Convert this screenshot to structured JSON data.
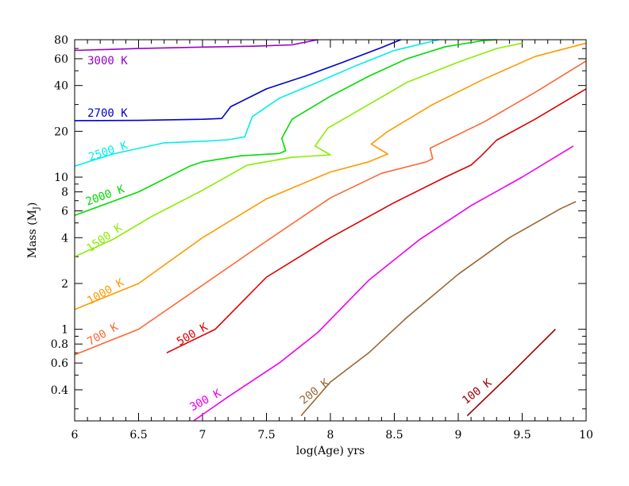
{
  "chart_data": {
    "type": "line",
    "title": "",
    "xlabel": "log(Age) yrs",
    "ylabel": "Mass (M",
    "ylabel_sub": "J",
    "ylabel_close": ")",
    "xlim": [
      6,
      10
    ],
    "ylim": [
      0.25,
      80
    ],
    "yscale": "log",
    "grid": false,
    "legend": "none",
    "x_ticks": [
      {
        "value": 6,
        "label": "6"
      },
      {
        "value": 6.5,
        "label": "6.5"
      },
      {
        "value": 7,
        "label": "7"
      },
      {
        "value": 7.5,
        "label": "7.5"
      },
      {
        "value": 8,
        "label": "8"
      },
      {
        "value": 8.5,
        "label": "8.5"
      },
      {
        "value": 9,
        "label": "9"
      },
      {
        "value": 9.5,
        "label": "9.5"
      },
      {
        "value": 10,
        "label": "10"
      }
    ],
    "y_ticks": [
      {
        "value": 0.4,
        "label": "0.4"
      },
      {
        "value": 0.6,
        "label": "0.6"
      },
      {
        "value": 0.8,
        "label": "0.8"
      },
      {
        "value": 1,
        "label": "1"
      },
      {
        "value": 2,
        "label": "2"
      },
      {
        "value": 4,
        "label": "4"
      },
      {
        "value": 6,
        "label": "6"
      },
      {
        "value": 8,
        "label": "8"
      },
      {
        "value": 10,
        "label": "10"
      },
      {
        "value": 20,
        "label": "20"
      },
      {
        "value": 40,
        "label": "40"
      },
      {
        "value": 60,
        "label": "60"
      },
      {
        "value": 80,
        "label": "80"
      }
    ],
    "series": [
      {
        "name": "3000 K",
        "color": "#9900cc",
        "label_x": 6.1,
        "label_y": 55,
        "label_angle": 0,
        "x": [
          6.0,
          6.5,
          7.0,
          7.4,
          7.7,
          7.9
        ],
        "y": [
          68,
          70,
          71.5,
          72.5,
          74,
          80
        ]
      },
      {
        "name": "2700 K",
        "color": "#0000cc",
        "label_x": 6.1,
        "label_y": 25,
        "label_angle": 0,
        "x": [
          6.0,
          6.5,
          7.0,
          7.15,
          7.22,
          7.5,
          7.8,
          8.1,
          8.4,
          8.55
        ],
        "y": [
          23.5,
          23.6,
          24.0,
          24.3,
          29,
          38,
          46,
          57,
          71,
          80
        ]
      },
      {
        "name": "2500 K",
        "color": "#00eeee",
        "label_x": 6.12,
        "label_y": 12.8,
        "label_angle": -18,
        "x": [
          6.0,
          6.3,
          6.7,
          7.0,
          7.2,
          7.33,
          7.39,
          7.6,
          7.9,
          8.2,
          8.5,
          8.85
        ],
        "y": [
          11.8,
          14.2,
          16.8,
          17.2,
          17.6,
          18.4,
          25,
          33,
          42,
          54,
          68,
          80
        ]
      },
      {
        "name": "2000 K",
        "color": "#00dd00",
        "label_x": 6.1,
        "label_y": 6.5,
        "label_angle": -20,
        "x": [
          6.0,
          6.5,
          6.9,
          7.0,
          7.3,
          7.6,
          7.65,
          7.62,
          7.7,
          8.0,
          8.3,
          8.6,
          8.9,
          9.2,
          9.3
        ],
        "y": [
          5.6,
          8.0,
          11.8,
          12.6,
          13.8,
          14.3,
          14.9,
          18.0,
          24,
          34,
          46,
          60,
          72,
          79,
          80
        ]
      },
      {
        "name": "1500 K",
        "color": "#88ee00",
        "label_x": 6.12,
        "label_y": 3.2,
        "label_angle": -35,
        "x": [
          6.0,
          6.3,
          6.6,
          7.0,
          7.35,
          7.7,
          8.0,
          7.88,
          7.98,
          8.3,
          8.6,
          9.0,
          9.3,
          9.5
        ],
        "y": [
          3.0,
          3.9,
          5.5,
          8.2,
          12.0,
          13.5,
          14.0,
          16.0,
          21,
          30,
          42,
          57,
          70,
          76
        ]
      },
      {
        "name": "1000 K",
        "color": "#ff9900",
        "label_x": 6.12,
        "label_y": 1.45,
        "label_angle": -30,
        "x": [
          6.0,
          6.5,
          7.0,
          7.5,
          8.0,
          8.3,
          8.45,
          8.32,
          8.45,
          8.8,
          9.2,
          9.6,
          10.0
        ],
        "y": [
          1.35,
          2.0,
          4.0,
          7.2,
          10.8,
          12.6,
          14.2,
          16.5,
          20,
          30,
          44,
          62,
          76
        ]
      },
      {
        "name": "700 K",
        "color": "#ff6633",
        "label_x": 6.12,
        "label_y": 0.78,
        "label_angle": -30,
        "x": [
          6.0,
          6.5,
          7.0,
          7.5,
          8.0,
          8.4,
          8.75,
          8.8,
          8.78,
          9.2,
          9.6,
          10.0
        ],
        "y": [
          0.68,
          1.0,
          1.95,
          3.8,
          7.3,
          10.6,
          12.6,
          13.2,
          15.5,
          23,
          36,
          58
        ]
      },
      {
        "name": "500 K",
        "color": "#dd0000",
        "label_x": 6.82,
        "label_y": 0.78,
        "label_angle": -30,
        "x": [
          6.72,
          7.1,
          7.5,
          8.0,
          8.5,
          8.9,
          9.1,
          9.18,
          9.3,
          9.6,
          10.0
        ],
        "y": [
          0.7,
          1.0,
          2.2,
          4.0,
          6.8,
          10.0,
          12.0,
          13.8,
          17.5,
          24,
          38
        ]
      },
      {
        "name": "300 K",
        "color": "#ee00ee",
        "label_x": 6.92,
        "label_y": 0.29,
        "label_angle": -28,
        "x": [
          6.93,
          7.2,
          7.6,
          7.9,
          8.3,
          8.7,
          9.1,
          9.5,
          9.9
        ],
        "y": [
          0.25,
          0.36,
          0.6,
          0.95,
          2.1,
          3.9,
          6.5,
          10.0,
          16.0
        ]
      },
      {
        "name": "200 K",
        "color": "#996633",
        "label_x": 7.79,
        "label_y": 0.32,
        "label_angle": -38,
        "x": [
          7.77,
          8.0,
          8.3,
          8.6,
          9.0,
          9.4,
          9.8,
          9.92
        ],
        "y": [
          0.27,
          0.45,
          0.7,
          1.2,
          2.3,
          4.0,
          6.2,
          6.9
        ]
      },
      {
        "name": "100 K",
        "color": "#990000",
        "label_x": 9.06,
        "label_y": 0.32,
        "label_angle": -38,
        "x": [
          9.07,
          9.4,
          9.76
        ],
        "y": [
          0.27,
          0.5,
          1.0
        ]
      }
    ]
  }
}
